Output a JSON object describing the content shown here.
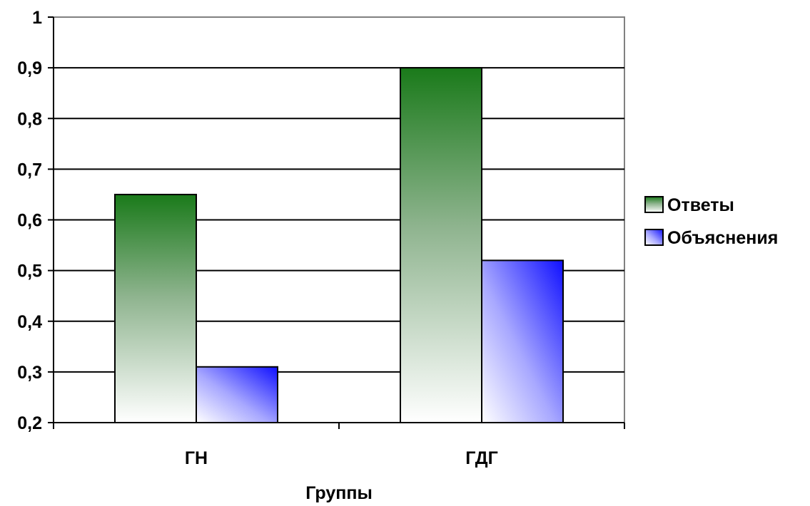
{
  "chart_data": {
    "type": "bar",
    "categories": [
      "ГН",
      "ГДГ"
    ],
    "series": [
      {
        "name": "Ответы",
        "values": [
          0.65,
          0.9
        ]
      },
      {
        "name": "Объяснения",
        "values": [
          0.31,
          0.52
        ]
      }
    ],
    "xlabel": "Группы",
    "ylabel": "",
    "ylim": [
      0.2,
      1
    ],
    "yticks": [
      "0,2",
      "0,3",
      "0,4",
      "0,5",
      "0,6",
      "0,7",
      "0,8",
      "0,9",
      "1"
    ],
    "grid": true,
    "legend_position": "right"
  },
  "colors": {
    "series_1_dark": "#1a7a1a",
    "series_1_light": "#ffffff",
    "series_2_dark": "#1a1aff",
    "series_2_light": "#ffffff",
    "gridline": "#000000"
  }
}
